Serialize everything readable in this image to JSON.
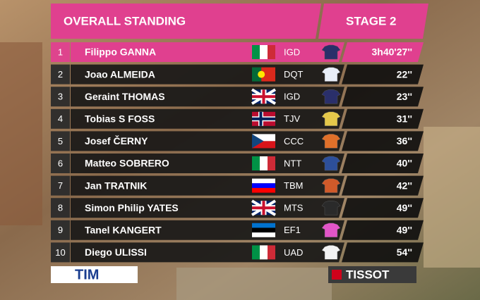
{
  "header": {
    "title": "OVERALL STANDING",
    "stage": "STAGE 2"
  },
  "table": {
    "rows": [
      {
        "rank": "1",
        "name": "Filippo GANNA",
        "team": "IGD",
        "time": "3h40'27''"
      },
      {
        "rank": "2",
        "name": "Joao ALMEIDA",
        "team": "DQT",
        "time": "22''"
      },
      {
        "rank": "3",
        "name": "Geraint THOMAS",
        "team": "IGD",
        "time": "23''"
      },
      {
        "rank": "4",
        "name": "Tobias S FOSS",
        "team": "TJV",
        "time": "31''"
      },
      {
        "rank": "5",
        "name": "Josef ČERNY",
        "team": "CCC",
        "time": "36''"
      },
      {
        "rank": "6",
        "name": "Matteo SOBRERO",
        "team": "NTT",
        "time": "40''"
      },
      {
        "rank": "7",
        "name": "Jan TRATNIK",
        "team": "TBM",
        "time": "42''"
      },
      {
        "rank": "8",
        "name": "Simon Philip YATES",
        "team": "MTS",
        "time": "49''"
      },
      {
        "rank": "9",
        "name": "Tanel KANGERT",
        "team": "EF1",
        "time": "49''"
      },
      {
        "rank": "10",
        "name": "Diego ULISSI",
        "team": "UAD",
        "time": "54''"
      }
    ]
  },
  "sponsors": {
    "left": "TIM",
    "right": "TISSOT"
  }
}
